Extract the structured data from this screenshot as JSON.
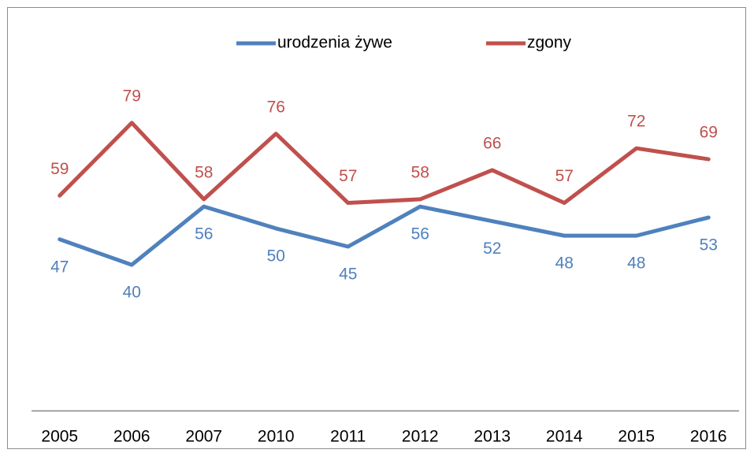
{
  "chart_data": {
    "type": "line",
    "categories": [
      "2005",
      "2006",
      "2007",
      "2010",
      "2011",
      "2012",
      "2013",
      "2014",
      "2015",
      "2016"
    ],
    "series": [
      {
        "name": "urodzenia żywe",
        "color": "#4f81bd",
        "values": [
          47,
          40,
          56,
          50,
          45,
          56,
          52,
          48,
          48,
          53
        ],
        "label_position": "below"
      },
      {
        "name": "zgony",
        "color": "#c0504d",
        "values": [
          59,
          79,
          58,
          76,
          57,
          58,
          66,
          57,
          72,
          69
        ],
        "label_position": "above"
      }
    ],
    "ylim": [
      0,
      90
    ],
    "grid": false,
    "legend": "top"
  }
}
